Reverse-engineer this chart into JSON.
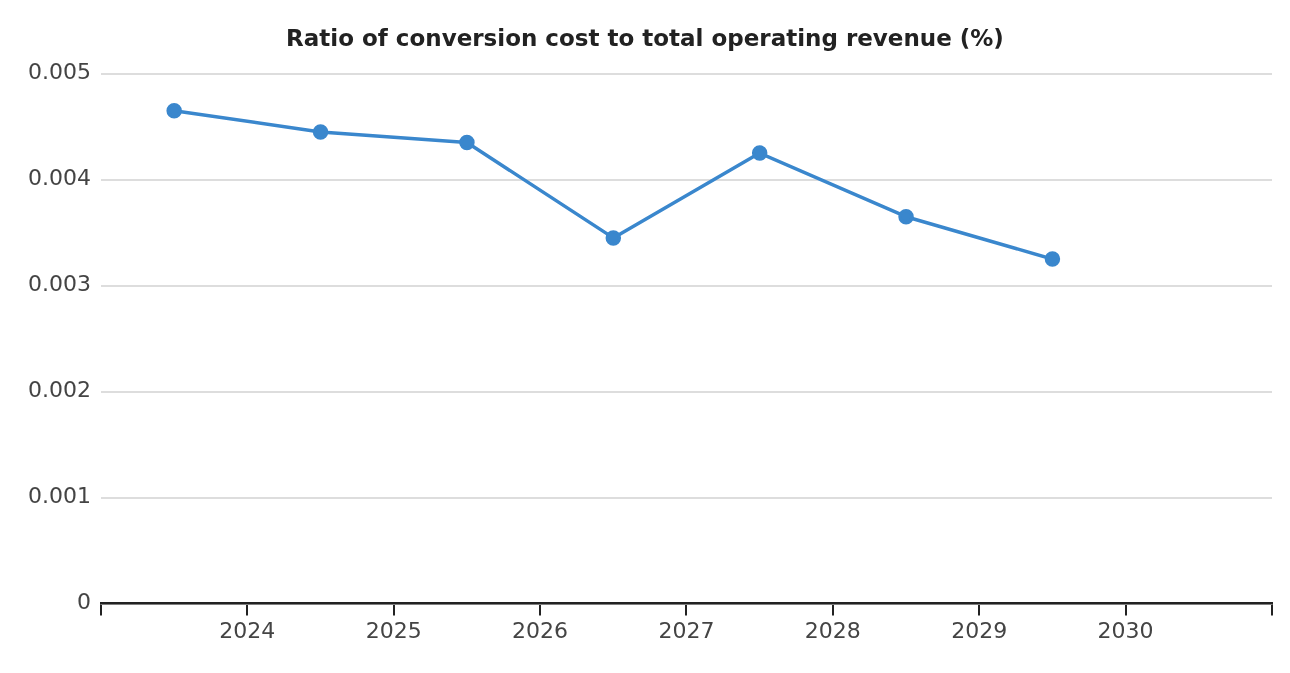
{
  "chart_data": {
    "type": "line",
    "title": "Ratio of conversion cost to total operating revenue (%)",
    "x": [
      2023.5,
      2024.5,
      2025.5,
      2026.5,
      2027.5,
      2028.5,
      2029.5
    ],
    "series": [
      {
        "color": "#3a87cd",
        "values": [
          0.00465,
          0.00445,
          0.00435,
          0.00345,
          0.00425,
          0.00365,
          0.00325
        ]
      }
    ],
    "xlim": [
      2023,
      2031
    ],
    "xticks": [
      {
        "value": 2023,
        "label": null
      },
      2024,
      2025,
      2026,
      2027,
      2028,
      2029,
      2030,
      {
        "value": 2031,
        "label": null
      }
    ],
    "ylim": [
      0,
      0.005
    ],
    "yticks": [
      0,
      0.001,
      0.002,
      0.003,
      0.004,
      0.005
    ],
    "grid": "y",
    "marker": "circle",
    "line_style": "solid"
  }
}
